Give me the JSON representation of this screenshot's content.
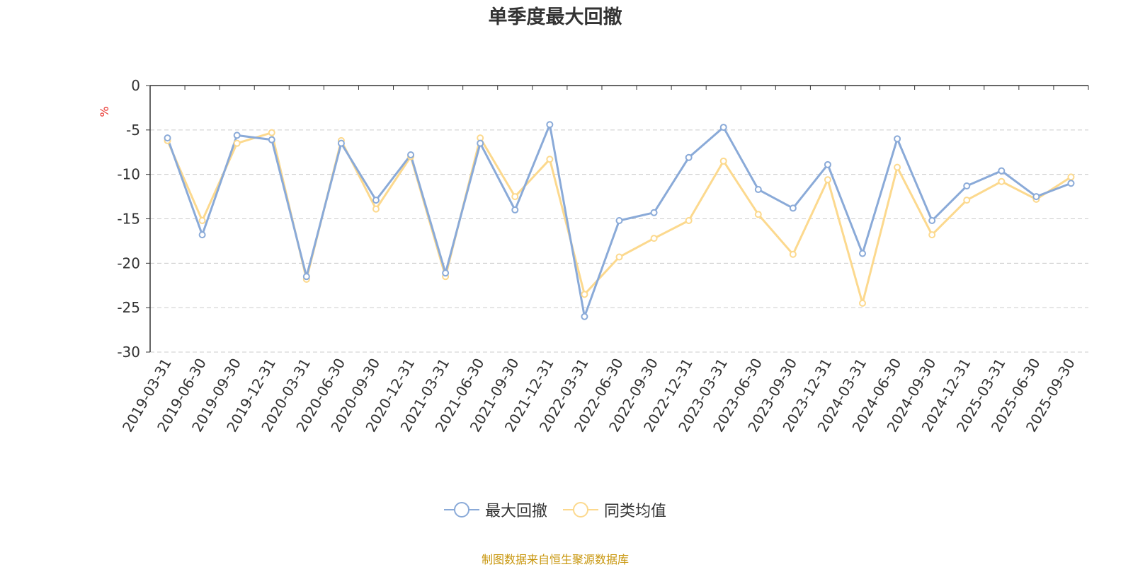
{
  "title": "单季度最大回撤",
  "source_note": "制图数据来自恒生聚源数据库",
  "chart_data": {
    "type": "line",
    "title": "单季度最大回撤",
    "ylabel": "%",
    "xlabel": "",
    "ylim": [
      -30,
      0
    ],
    "yticks": [
      0,
      -5,
      -10,
      -15,
      -20,
      -25,
      -30
    ],
    "grid": true,
    "legend_position": "bottom-center",
    "categories": [
      "2019-03-31",
      "2019-06-30",
      "2019-09-30",
      "2019-12-31",
      "2020-03-31",
      "2020-06-30",
      "2020-09-30",
      "2020-12-31",
      "2021-03-31",
      "2021-06-30",
      "2021-09-30",
      "2021-12-31",
      "2022-03-31",
      "2022-06-30",
      "2022-09-30",
      "2022-12-31",
      "2023-03-31",
      "2023-06-30",
      "2023-09-30",
      "2023-12-31",
      "2024-03-31",
      "2024-06-30",
      "2024-09-30",
      "2024-12-31",
      "2025-03-31",
      "2025-06-30",
      "2025-09-30"
    ],
    "series": [
      {
        "name": "最大回撤",
        "color": "#8aaad8",
        "values": [
          -5.9,
          -16.8,
          -5.6,
          -6.1,
          -21.5,
          -6.5,
          -12.9,
          -7.8,
          -21.1,
          -6.5,
          -14.0,
          -4.4,
          -26.0,
          -15.2,
          -14.3,
          -8.1,
          -4.7,
          -11.7,
          -13.8,
          -8.9,
          -18.9,
          -6.0,
          -15.2,
          -11.3,
          -9.6,
          -12.5,
          -11.0
        ]
      },
      {
        "name": "同类均值",
        "color": "#fcd98e",
        "values": [
          -6.2,
          -15.2,
          -6.5,
          -5.3,
          -21.8,
          -6.2,
          -13.9,
          -8.0,
          -21.5,
          -5.9,
          -12.5,
          -8.3,
          -23.5,
          -19.3,
          -17.2,
          -15.2,
          -8.5,
          -14.5,
          -19.0,
          -10.6,
          -24.5,
          -9.2,
          -16.8,
          -12.9,
          -10.8,
          -12.8,
          -10.3
        ]
      }
    ]
  }
}
